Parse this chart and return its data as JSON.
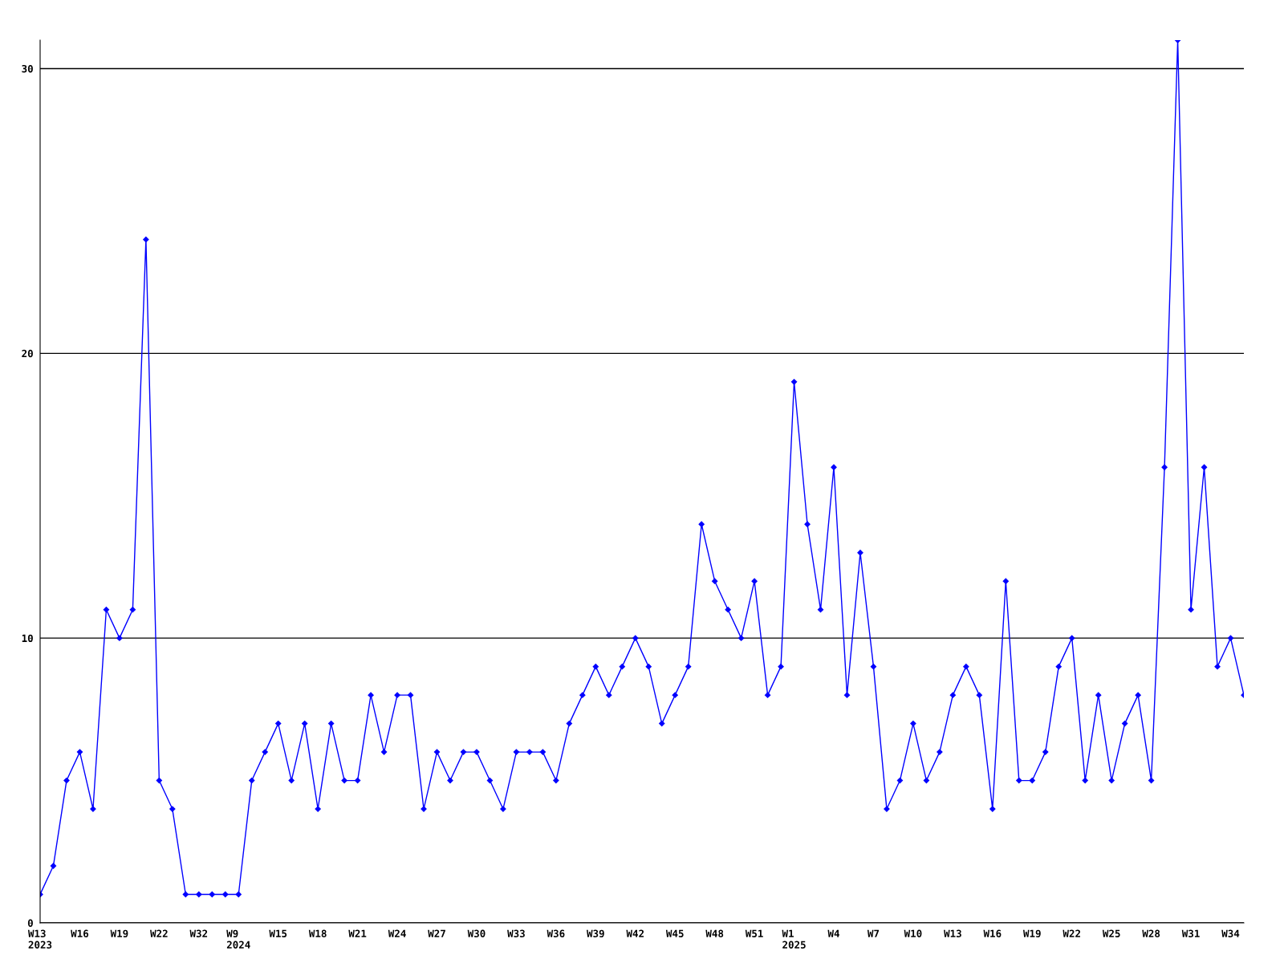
{
  "chart_data": {
    "type": "line",
    "categories": [
      "W13\n2023",
      null,
      null,
      "W16",
      null,
      null,
      "W19",
      null,
      null,
      "W22",
      null,
      null,
      "W32",
      null,
      null,
      "W9\n2024",
      null,
      null,
      "W15",
      null,
      null,
      "W18",
      null,
      null,
      "W21",
      null,
      null,
      "W24",
      null,
      null,
      "W27",
      null,
      null,
      "W30",
      null,
      null,
      "W33",
      null,
      null,
      "W36",
      null,
      null,
      "W39",
      null,
      null,
      "W42",
      null,
      null,
      "W45",
      null,
      null,
      "W48",
      null,
      null,
      "W51",
      null,
      null,
      "W1\n2025",
      null,
      null,
      "W4",
      null,
      null,
      "W7",
      null,
      null,
      "W10",
      null,
      null,
      "W13",
      null,
      null,
      "W16",
      null,
      null,
      "W19",
      null,
      null,
      "W22",
      null,
      null,
      "W25",
      null,
      null,
      "W28",
      null,
      null,
      "W31",
      null,
      null,
      "W34",
      null
    ],
    "series": [
      {
        "color": "#0000ff",
        "values": [
          1,
          2,
          5,
          6,
          4,
          11,
          10,
          11,
          24,
          5,
          4,
          1,
          1,
          1,
          1,
          1,
          5,
          6,
          7,
          5,
          7,
          4,
          7,
          5,
          5,
          8,
          6,
          8,
          8,
          4,
          6,
          5,
          6,
          6,
          5,
          4,
          6,
          6,
          6,
          5,
          7,
          8,
          9,
          8,
          9,
          10,
          9,
          7,
          8,
          9,
          14,
          12,
          11,
          10,
          12,
          8,
          9,
          19,
          14,
          11,
          16,
          8,
          13,
          9,
          4,
          5,
          7,
          5,
          6,
          8,
          9,
          8,
          4,
          12,
          5,
          5,
          6,
          9,
          10,
          5,
          8,
          5,
          7,
          8,
          5,
          16,
          31,
          11,
          16,
          9,
          10,
          8
        ]
      }
    ],
    "ylim": [
      0,
      31
    ],
    "yticks": [
      0,
      10,
      20,
      30
    ],
    "grid": "y",
    "marker": "diamond",
    "line_style": "solid",
    "legend": false
  }
}
